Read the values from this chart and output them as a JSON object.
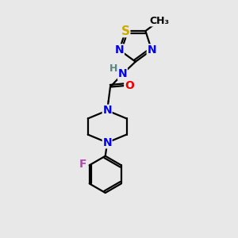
{
  "bg_color": "#e8e8e8",
  "atom_colors": {
    "C": "#000000",
    "N": "#0000ee",
    "O": "#ee0000",
    "S": "#ccaa00",
    "F": "#bb44bb",
    "H": "#558888"
  },
  "bond_color": "#000000",
  "bond_lw": 1.6,
  "font_size": 10,
  "fig_size": [
    3.0,
    3.0
  ],
  "dpi": 100,
  "xlim": [
    0,
    10
  ],
  "ylim": [
    0,
    10
  ]
}
